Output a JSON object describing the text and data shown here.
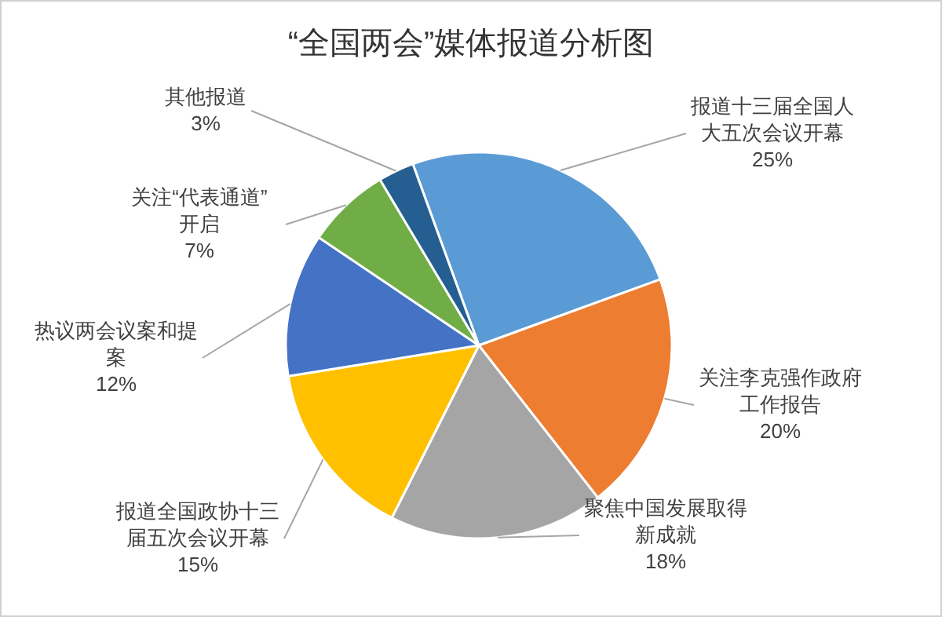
{
  "chart_data": {
    "type": "pie",
    "title": "“全国两会”媒体报道分析图",
    "categories": [
      "报道十三届全国人大五次会议开幕",
      "关注李克强作政府工作报告",
      "聚焦中国发展取得新成就",
      "报道全国政协十三届五次会议开幕",
      "热议两会议案和提案",
      "关注“代表通道”开启",
      "其他报道"
    ],
    "values": [
      25,
      20,
      18,
      15,
      12,
      7,
      3
    ],
    "value_labels": [
      "25%",
      "20%",
      "18%",
      "15%",
      "12%",
      "7%",
      "3%"
    ],
    "colors": [
      "#5b9bd5",
      "#ed7d31",
      "#a5a5a5",
      "#ffc000",
      "#4472c4",
      "#70ad47",
      "#255e91"
    ]
  }
}
